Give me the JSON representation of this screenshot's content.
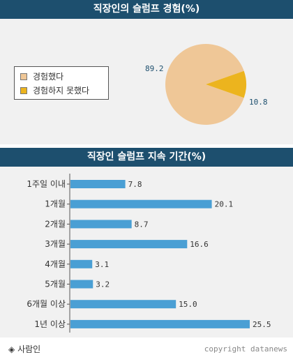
{
  "colors": {
    "header_bg": "#1d4f6e",
    "panel_bg": "#f1f1f1",
    "pie_yes": "#efc797",
    "pie_no": "#ecb41e",
    "bar": "#4a9fd4",
    "pie_label": "#1d4f6e"
  },
  "chart_data": [
    {
      "type": "pie",
      "title": "직장인의 슬럼프 경험(%)",
      "legend_placement": "left",
      "series": [
        {
          "name": "경험했다",
          "value": 89.2,
          "label": "89.2"
        },
        {
          "name": "경험하지 못했다",
          "value": 10.8,
          "label": "10.8"
        }
      ]
    },
    {
      "type": "bar",
      "orientation": "horizontal",
      "title": "직장인 슬럼프 지속 기간(%)",
      "categories": [
        "1주일 이내",
        "1개월",
        "2개월",
        "3개월",
        "4개월",
        "5개월",
        "6개월 이상",
        "1년 이상"
      ],
      "values": [
        7.8,
        20.1,
        8.7,
        16.6,
        3.1,
        3.2,
        15.0,
        25.5
      ],
      "value_labels": [
        "7.8",
        "20.1",
        "8.7",
        "16.6",
        "3.1",
        "3.2",
        "15.0",
        "25.5"
      ],
      "xlim": [
        0,
        25.5
      ],
      "grid": false
    }
  ],
  "footer": {
    "source_icon": "diamond-icon",
    "source_glyph": "◈",
    "source": "사람인",
    "copyright": "copyright datanews"
  }
}
